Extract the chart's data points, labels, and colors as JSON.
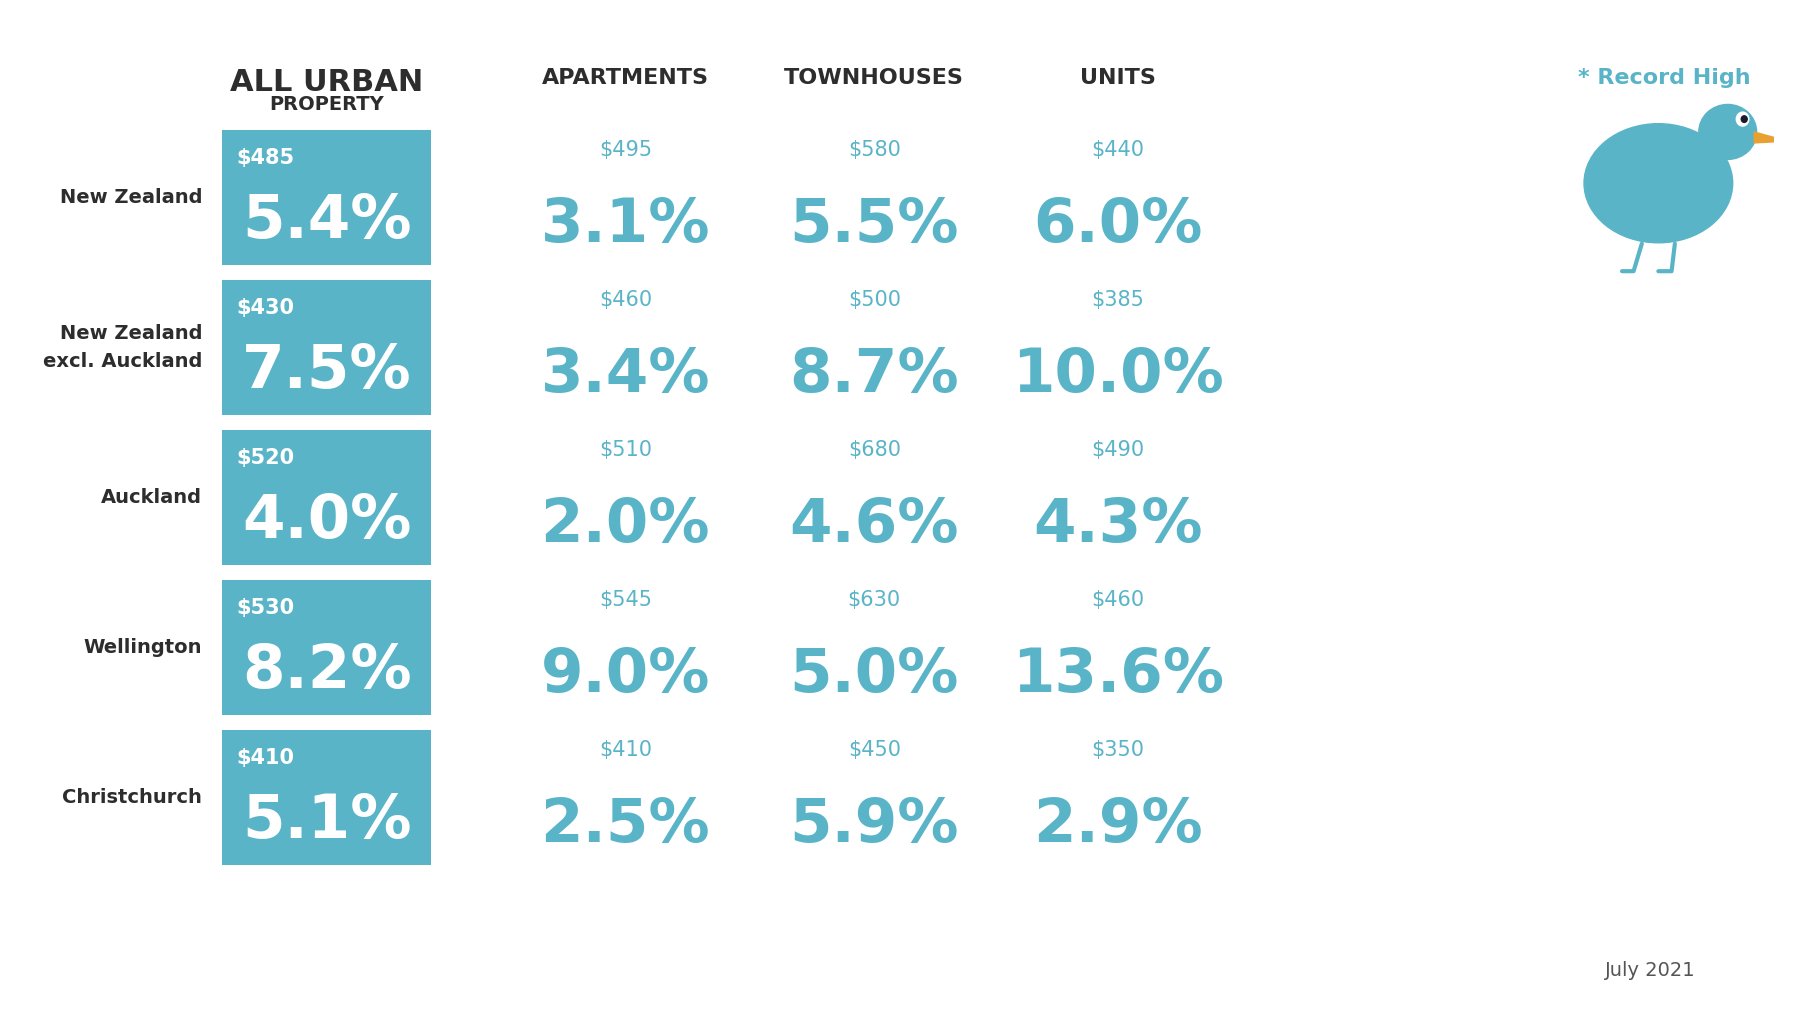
{
  "background_color": "#ffffff",
  "teal_box_color": "#5ab4c8",
  "teal_text_color": "#5ab4c8",
  "white_color": "#ffffff",
  "dark_color": "#2d2d2d",
  "record_high_text": "* Record High",
  "record_high_color": "#5ab4c8",
  "footer_text": "July 2021",
  "rows": [
    {
      "label_lines": [
        "New Zealand"
      ],
      "col1_price": "$485",
      "col1_pct": "5.4%",
      "col2_price": "$495",
      "col2_pct": "3.1%",
      "col3_price": "$580",
      "col3_pct": "5.5%",
      "col4_price": "$440",
      "col4_pct": "6.0%"
    },
    {
      "label_lines": [
        "New Zealand",
        "excl. Auckland"
      ],
      "col1_price": "$430",
      "col1_pct": "7.5%",
      "col2_price": "$460",
      "col2_pct": "3.4%",
      "col3_price": "$500",
      "col3_pct": "8.7%",
      "col4_price": "$385",
      "col4_pct": "10.0%"
    },
    {
      "label_lines": [
        "Auckland"
      ],
      "col1_price": "$520",
      "col1_pct": "4.0%",
      "col2_price": "$510",
      "col2_pct": "2.0%",
      "col3_price": "$680",
      "col3_pct": "4.6%",
      "col4_price": "$490",
      "col4_pct": "4.3%"
    },
    {
      "label_lines": [
        "Wellington"
      ],
      "col1_price": "$530",
      "col1_pct": "8.2%",
      "col2_price": "$545",
      "col2_pct": "9.0%",
      "col3_price": "$630",
      "col3_pct": "5.0%",
      "col4_price": "$460",
      "col4_pct": "13.6%"
    },
    {
      "label_lines": [
        "Christchurch"
      ],
      "col1_price": "$410",
      "col1_pct": "5.1%",
      "col2_price": "$410",
      "col2_pct": "2.5%",
      "col3_price": "$450",
      "col3_pct": "5.9%",
      "col4_price": "$350",
      "col4_pct": "2.9%"
    }
  ]
}
